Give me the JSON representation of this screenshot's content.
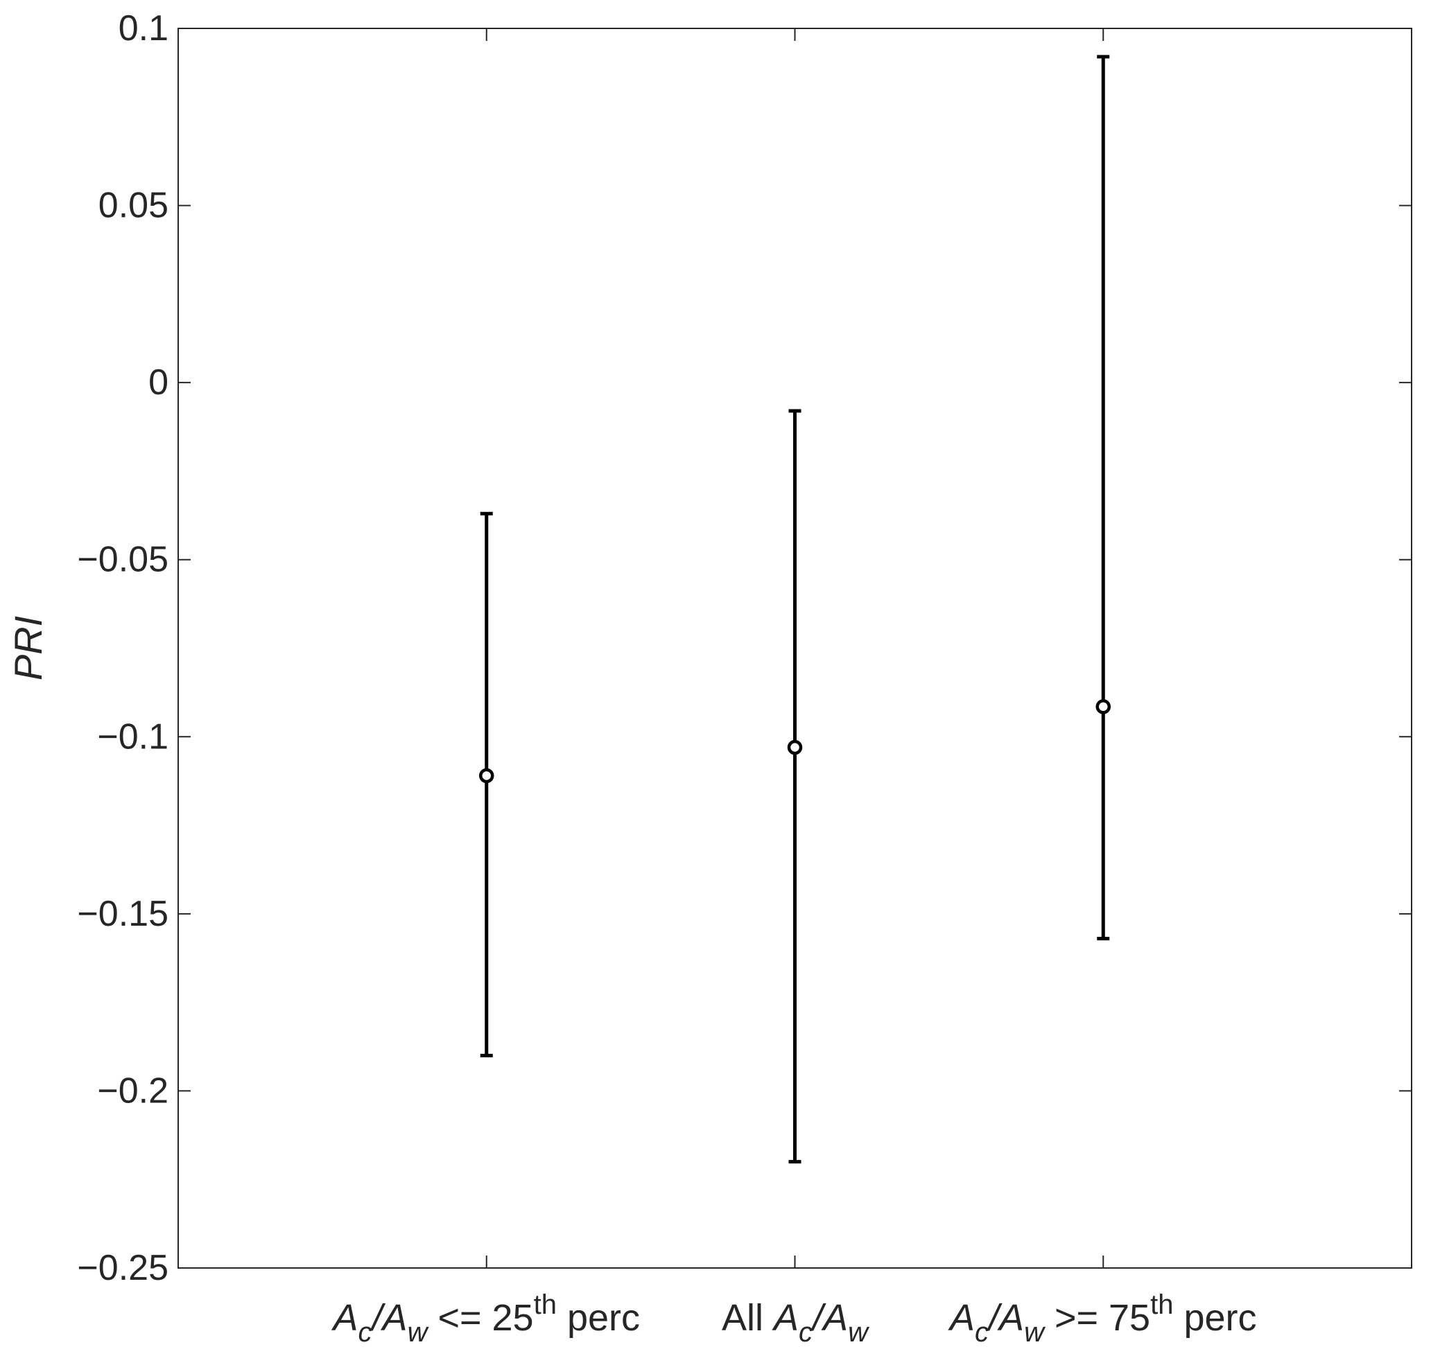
{
  "chart_data": {
    "type": "errorbar",
    "title": "",
    "xlabel": "",
    "ylabel": "PRI",
    "ylim": [
      -0.25,
      0.1
    ],
    "yticks": [
      -0.25,
      -0.2,
      -0.15,
      -0.1,
      -0.05,
      0,
      0.05,
      0.1
    ],
    "ytick_labels": [
      "-0.25",
      "-0.2",
      "-0.15",
      "-0.1",
      "-0.05",
      "0",
      "0.05",
      "0.1"
    ],
    "categories": [
      {
        "label_parts": [
          {
            "text": "A",
            "style": "italic"
          },
          {
            "text": "c",
            "style": "italic-sub"
          },
          {
            "text": "/",
            "style": "italic"
          },
          {
            "text": "A",
            "style": "italic"
          },
          {
            "text": "w",
            "style": "italic-sub"
          },
          {
            "text": " <= 25",
            "style": "normal"
          },
          {
            "text": "th",
            "style": "sup"
          },
          {
            "text": " perc",
            "style": "normal"
          }
        ]
      },
      {
        "label_parts": [
          {
            "text": "All  ",
            "style": "normal"
          },
          {
            "text": "A",
            "style": "italic"
          },
          {
            "text": "c",
            "style": "italic-sub"
          },
          {
            "text": "/",
            "style": "italic"
          },
          {
            "text": "A",
            "style": "italic"
          },
          {
            "text": "w",
            "style": "italic-sub"
          }
        ]
      },
      {
        "label_parts": [
          {
            "text": "A",
            "style": "italic"
          },
          {
            "text": "c",
            "style": "italic-sub"
          },
          {
            "text": "/",
            "style": "italic"
          },
          {
            "text": "A",
            "style": "italic"
          },
          {
            "text": "w",
            "style": "italic-sub"
          },
          {
            "text": " >= 75",
            "style": "normal"
          },
          {
            "text": "th",
            "style": "sup"
          },
          {
            "text": " perc",
            "style": "normal"
          }
        ]
      }
    ],
    "points": [
      {
        "y": -0.111,
        "lower": -0.19,
        "upper": -0.037
      },
      {
        "y": -0.103,
        "lower": -0.22,
        "upper": -0.008
      },
      {
        "y": -0.0915,
        "lower": -0.157,
        "upper": 0.092
      }
    ],
    "grid": false,
    "box": true,
    "marker": "open-circle",
    "color": "#000000"
  }
}
